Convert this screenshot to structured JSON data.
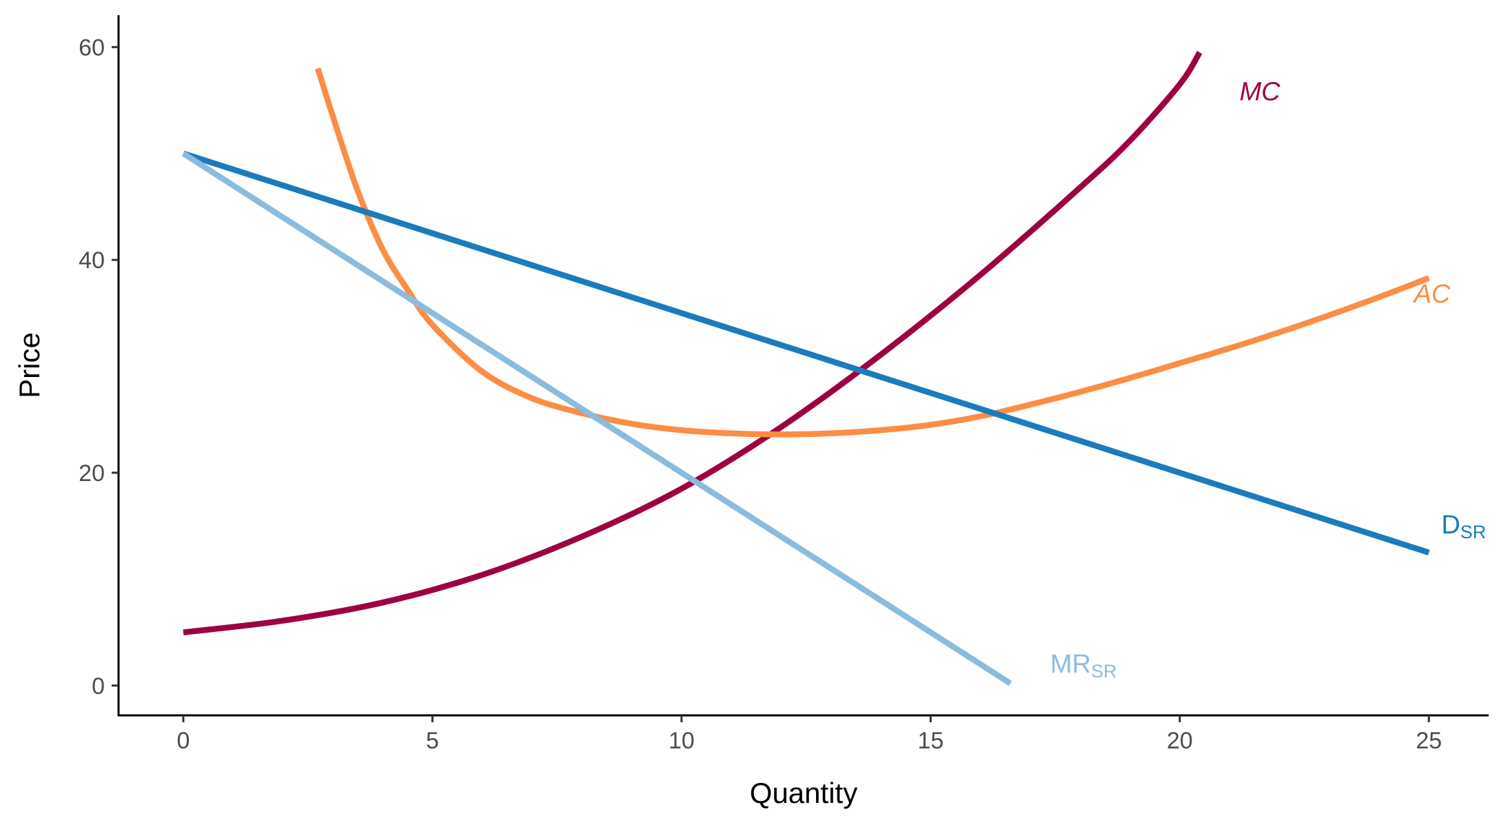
{
  "chart_data": {
    "type": "line",
    "xlabel": "Quantity",
    "ylabel": "Price",
    "xlim": [
      -1.3,
      26.2
    ],
    "ylim": [
      -2.8,
      63.0
    ],
    "xticks": [
      0,
      5,
      10,
      15,
      20,
      25
    ],
    "yticks": [
      0,
      20,
      40,
      60
    ],
    "grid": false,
    "series": [
      {
        "name": "MC",
        "color": "#9e0142",
        "label": {
          "main": "MC",
          "sub": "",
          "italic": true,
          "x": 21.2,
          "y": 55
        },
        "x": [
          0,
          2,
          4,
          6,
          8,
          10,
          12,
          14,
          16,
          18,
          19,
          20,
          20.4
        ],
        "y": [
          5,
          6.1,
          7.8,
          10.4,
          14.0,
          18.5,
          24.3,
          31.1,
          38.6,
          46.8,
          51.2,
          56.5,
          59.5
        ]
      },
      {
        "name": "AC",
        "color": "#fc8d45",
        "label": {
          "main": "AC",
          "sub": "",
          "italic": true,
          "x": 24.7,
          "y": 36
        },
        "x": [
          2.7,
          3.0,
          3.5,
          4.0,
          4.5,
          5.0,
          6.0,
          7.0,
          8.0,
          9.0,
          10.0,
          11.0,
          12.0,
          13.0,
          14.0,
          15.0,
          16.0,
          17.0,
          18.0,
          19.0,
          20.0,
          21.0,
          22.0,
          23.0,
          24.0,
          25.0
        ],
        "y": [
          58.0,
          53.5,
          46.5,
          41.0,
          37.2,
          33.9,
          29.5,
          27.0,
          25.6,
          24.6,
          24.0,
          23.7,
          23.6,
          23.7,
          24.0,
          24.5,
          25.3,
          26.4,
          27.6,
          28.9,
          30.3,
          31.7,
          33.2,
          34.8,
          36.5,
          38.3
        ]
      },
      {
        "name": "D",
        "color": "#1a7bbd",
        "label": {
          "main": "D",
          "sub": "SR",
          "italic": false,
          "x": 25.25,
          "y": 14.3
        },
        "x": [
          0,
          25
        ],
        "y": [
          50,
          12.5
        ]
      },
      {
        "name": "MR",
        "color": "#8bbcde",
        "label": {
          "main": "MR",
          "sub": "SR",
          "italic": false,
          "x": 17.4,
          "y": 1.2
        },
        "x": [
          0,
          16.6
        ],
        "y": [
          50,
          0.2
        ]
      }
    ]
  }
}
